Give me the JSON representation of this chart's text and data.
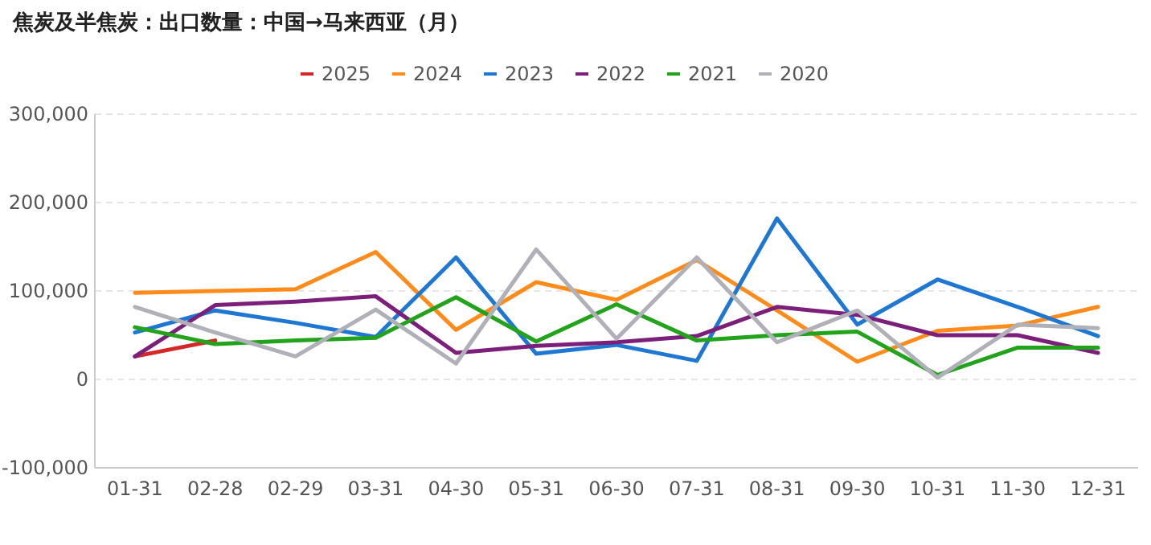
{
  "chart_data": {
    "type": "line",
    "title": "焦炭及半焦炭：出口数量：中国→马来西亚（月）",
    "categories": [
      "01-31",
      "02-28",
      "02-29",
      "03-31",
      "04-30",
      "05-31",
      "06-30",
      "07-31",
      "08-31",
      "09-30",
      "10-31",
      "11-30",
      "12-31"
    ],
    "series": [
      {
        "name": "2025",
        "color": "#d62728",
        "values": [
          26000,
          44000,
          null,
          null,
          null,
          null,
          null,
          null,
          null,
          null,
          null,
          null,
          null
        ]
      },
      {
        "name": "2024",
        "color": "#ff8c1a",
        "values": [
          98000,
          100000,
          102000,
          144000,
          56000,
          110000,
          90000,
          135000,
          78000,
          20000,
          55000,
          61000,
          82000
        ]
      },
      {
        "name": "2023",
        "color": "#1f77d4",
        "values": [
          53000,
          78000,
          64000,
          48000,
          138000,
          29000,
          39000,
          21000,
          182000,
          62000,
          113000,
          82000,
          49000
        ]
      },
      {
        "name": "2022",
        "color": "#7b1f7a",
        "values": [
          26000,
          84000,
          88000,
          94000,
          30000,
          38000,
          42000,
          49000,
          82000,
          73000,
          50000,
          50000,
          30000
        ]
      },
      {
        "name": "2021",
        "color": "#22a31c",
        "values": [
          59000,
          40000,
          44000,
          47000,
          93000,
          43000,
          85000,
          44000,
          50000,
          54000,
          5000,
          36000,
          36000
        ]
      },
      {
        "name": "2020",
        "color": "#b0b0b8",
        "values": [
          82000,
          53000,
          26000,
          79000,
          18000,
          147000,
          46000,
          138000,
          42000,
          78000,
          2000,
          62000,
          58000
        ]
      }
    ],
    "ylim": [
      -100000,
      300000
    ],
    "yticks": [
      {
        "value": -100000,
        "label": "-100,000"
      },
      {
        "value": 0,
        "label": "0"
      },
      {
        "value": 100000,
        "label": "100,000"
      },
      {
        "value": 200000,
        "label": "200,000"
      },
      {
        "value": 300000,
        "label": "300,000"
      }
    ],
    "grid": "y",
    "legend": "top",
    "marker": "none",
    "line_style": "solid"
  }
}
